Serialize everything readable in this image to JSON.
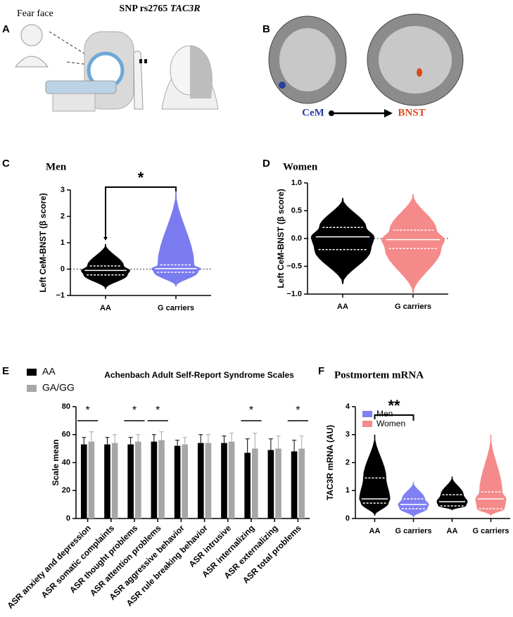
{
  "figure": {
    "title": "SNP rs2765",
    "title_gene": "TAC3R",
    "panel_a": {
      "letter": "A",
      "label": "Fear face"
    },
    "panel_b": {
      "letter": "B",
      "labels": [
        "CeM",
        "BNST"
      ]
    }
  },
  "chart_data": [
    {
      "type": "violin",
      "panel": "C",
      "title": "Men",
      "y_label": "Left CeM-BNST (β score)",
      "categories": [
        "AA",
        "G carriers"
      ],
      "colors": [
        "#000000",
        "#7b7bf0"
      ],
      "min": [
        -0.75,
        -0.65
      ],
      "q1": [
        -0.22,
        -0.12
      ],
      "median": [
        -0.05,
        0.02
      ],
      "q3": [
        0.12,
        0.16
      ],
      "max": [
        0.95,
        3.0
      ],
      "ylim": [
        -1,
        3
      ],
      "yticks": [
        {
          "value": -1,
          "label": "−1"
        },
        0,
        1,
        2,
        3
      ],
      "hline": 0,
      "annotations": [
        "*"
      ]
    },
    {
      "type": "violin",
      "panel": "D",
      "title": "Women",
      "y_label": "Left CeM-BNST (β score)",
      "categories": [
        "AA",
        "G carriers"
      ],
      "colors": [
        "#000000",
        "#f58a8a"
      ],
      "min": [
        -0.82,
        -1.0
      ],
      "q1": [
        -0.2,
        -0.18
      ],
      "median": [
        0.03,
        -0.02
      ],
      "q3": [
        0.2,
        0.15
      ],
      "max": [
        0.73,
        0.8
      ],
      "ylim": [
        -1,
        1
      ],
      "yticks": [
        {
          "value": -1,
          "label": "−1.0"
        },
        {
          "value": -0.5,
          "label": "−0.5"
        },
        {
          "value": 0,
          "label": "0.0"
        },
        {
          "value": 0.5,
          "label": "0.5"
        },
        {
          "value": 1,
          "label": "1.0"
        }
      ],
      "hline": 0
    },
    {
      "type": "bar",
      "panel": "E",
      "title": "Achenbach Adult Self-Report Syndrome Scales",
      "y_label": "Scale mean",
      "categories": [
        "ASR anxiety and depression",
        "ASR somatic complaints",
        "ASR thought problems",
        "ASR attention problems",
        "ASR aggressive behavior",
        "ASR rule breaking behavior",
        "ASR intrusive",
        "ASR internalizing",
        "ASR externalizing",
        "ASR total problems"
      ],
      "series": [
        {
          "name": "AA",
          "color": "#000000",
          "values": [
            53,
            53,
            53,
            55,
            52,
            54,
            54,
            47,
            49,
            48
          ],
          "errors": [
            5,
            5,
            5,
            5,
            4,
            6,
            5,
            10,
            8,
            8
          ]
        },
        {
          "name": "GA/GG",
          "color": "#a6a6a6",
          "values": [
            55,
            54,
            55,
            56,
            53,
            54,
            55,
            50,
            50,
            50
          ],
          "errors": [
            7,
            6,
            5,
            6,
            5,
            6,
            6,
            11,
            9,
            9
          ]
        }
      ],
      "ylim": [
        0,
        80
      ],
      "yticks": [
        0,
        20,
        40,
        60,
        80
      ],
      "annotations": [
        "*",
        "*",
        "*",
        "*",
        "*"
      ]
    },
    {
      "type": "violin",
      "panel": "F",
      "title": "Postmortem mRNA",
      "y_label": "TAC3R mRNA (AU)",
      "categories": [
        "AA",
        "G carriers",
        "AA",
        "G carriers"
      ],
      "colors": [
        "#000000",
        "#8080f2",
        "#000000",
        "#f58a8a"
      ],
      "legend": [
        {
          "name": "Men",
          "color": "#8080f2"
        },
        {
          "name": "Women",
          "color": "#f58a8a"
        }
      ],
      "min": [
        0.1,
        0.05,
        0.3,
        0.1
      ],
      "q1": [
        0.55,
        0.35,
        0.45,
        0.35
      ],
      "median": [
        0.7,
        0.5,
        0.6,
        0.7
      ],
      "q3": [
        1.45,
        0.7,
        0.85,
        0.95
      ],
      "max": [
        3.0,
        1.3,
        1.5,
        3.0
      ],
      "ylim": [
        0,
        4
      ],
      "yticks": [
        0,
        1,
        2,
        3,
        4
      ],
      "annotations": [
        "**"
      ]
    }
  ]
}
